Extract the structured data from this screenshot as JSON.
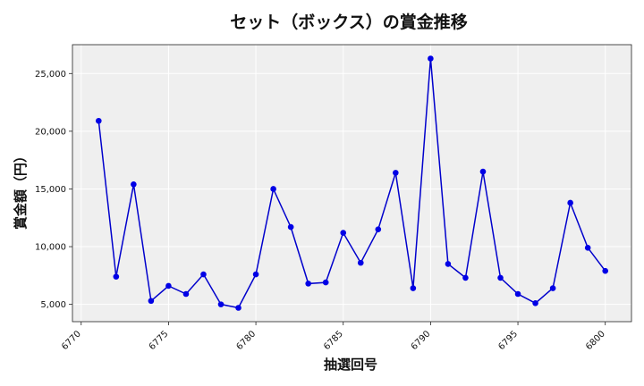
{
  "chart_data": {
    "type": "line",
    "title": "セット（ボックス）の賞金推移",
    "xlabel": "抽選回号",
    "ylabel": "賞金額（円）",
    "x": [
      6771,
      6772,
      6773,
      6774,
      6775,
      6776,
      6777,
      6778,
      6779,
      6780,
      6781,
      6782,
      6783,
      6784,
      6785,
      6786,
      6787,
      6788,
      6789,
      6790,
      6791,
      6792,
      6793,
      6794,
      6795,
      6796,
      6797,
      6798,
      6799,
      6800
    ],
    "y": [
      20900,
      7400,
      15400,
      5300,
      6600,
      5900,
      7600,
      5000,
      4700,
      7600,
      15000,
      11700,
      6800,
      6900,
      11200,
      8600,
      11500,
      16400,
      6400,
      26300,
      8500,
      7300,
      16500,
      7300,
      5900,
      5100,
      6400,
      13800,
      9900,
      7900
    ],
    "xlim": [
      6769.5,
      6801.5
    ],
    "ylim": [
      3500,
      27500
    ],
    "xticks": [
      6770,
      6775,
      6780,
      6785,
      6790,
      6795,
      6800
    ],
    "yticks": [
      5000,
      10000,
      15000,
      20000,
      25000
    ],
    "ytick_labels": [
      "5,000",
      "10,000",
      "15,000",
      "20,000",
      "25,000"
    ],
    "grid": true,
    "line_color": "#0000cc",
    "marker_color": "#0000e6",
    "plot_bg": "#efefef"
  }
}
